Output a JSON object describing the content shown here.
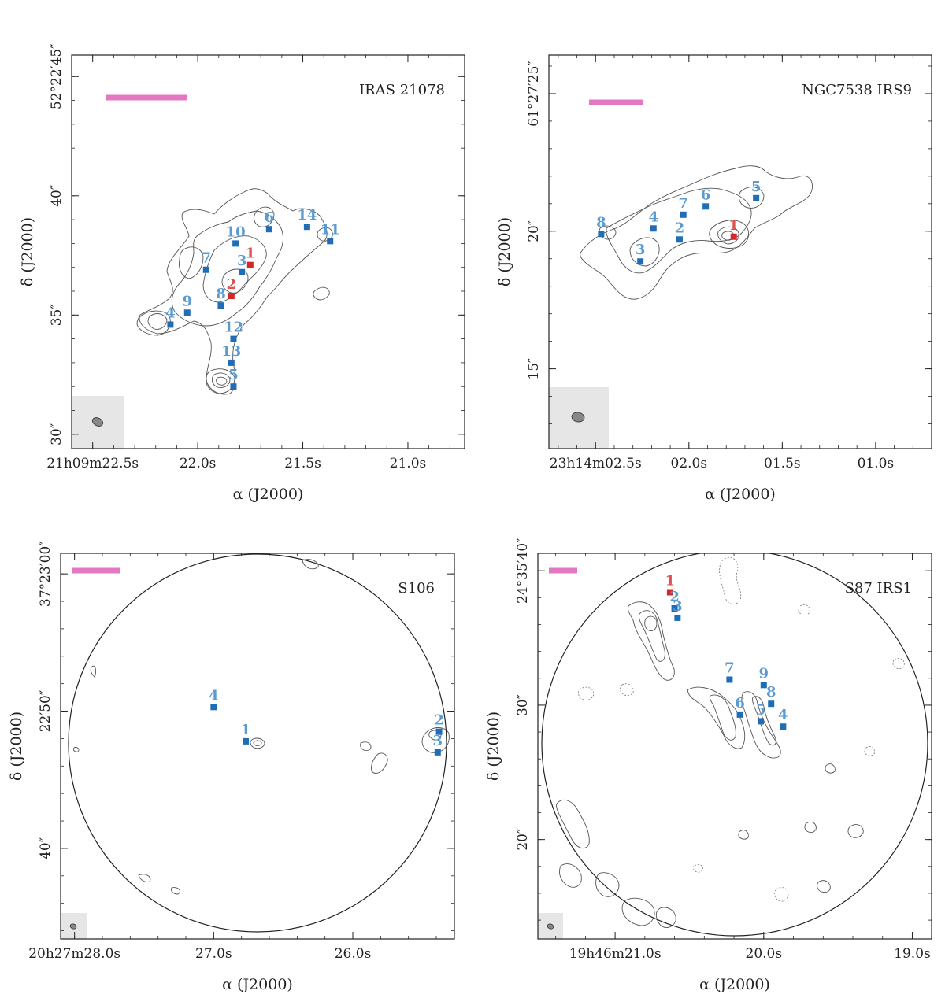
{
  "colors": {
    "blue_marker": "#1f6eb5",
    "blue_label": "#5b9bd0",
    "red_marker": "#d62728",
    "red_label": "#e05050",
    "scale_bar": "#e377c2",
    "contour": "#555555",
    "beam_box": "#e6e6e6",
    "beam": "#888888"
  },
  "chart_data": [
    {
      "type": "scatter",
      "title": "IRAS 21078",
      "xlabel": "α (J2000)",
      "ylabel": "δ (J2000)",
      "xlim": [
        22.6,
        20.73
      ],
      "ylim": [
        29.4,
        45.9
      ],
      "x_ticks": [
        {
          "value": 22.5,
          "label": "21h09m22.5s"
        },
        {
          "value": 22.0,
          "label": "22.0s"
        },
        {
          "value": 21.5,
          "label": "21.5s"
        },
        {
          "value": 21.0,
          "label": "21.0s"
        }
      ],
      "y_ticks": [
        {
          "value": 45,
          "label": "52°22′45″"
        },
        {
          "value": 40,
          "label": "40″"
        },
        {
          "value": 35,
          "label": "35″"
        },
        {
          "value": 30,
          "label": "30″"
        }
      ],
      "has_primary_beam_circle": false,
      "sources": [
        {
          "id": "1",
          "ra": 21.75,
          "dec": 37.1,
          "color": "red"
        },
        {
          "id": "2",
          "ra": 21.84,
          "dec": 35.8,
          "color": "red"
        },
        {
          "id": "3",
          "ra": 21.79,
          "dec": 36.8,
          "color": "blue"
        },
        {
          "id": "4",
          "ra": 22.13,
          "dec": 34.6,
          "color": "blue"
        },
        {
          "id": "5",
          "ra": 21.83,
          "dec": 32.0,
          "color": "blue"
        },
        {
          "id": "6",
          "ra": 21.66,
          "dec": 38.6,
          "color": "blue"
        },
        {
          "id": "7",
          "ra": 21.96,
          "dec": 36.9,
          "color": "blue"
        },
        {
          "id": "8",
          "ra": 21.89,
          "dec": 35.4,
          "color": "blue"
        },
        {
          "id": "9",
          "ra": 22.05,
          "dec": 35.1,
          "color": "blue"
        },
        {
          "id": "10",
          "ra": 21.82,
          "dec": 38.0,
          "color": "blue"
        },
        {
          "id": "11",
          "ra": 21.37,
          "dec": 38.1,
          "color": "blue"
        },
        {
          "id": "12",
          "ra": 21.83,
          "dec": 34.0,
          "color": "blue"
        },
        {
          "id": "13",
          "ra": 21.84,
          "dec": 33.0,
          "color": "blue"
        },
        {
          "id": "14",
          "ra": 21.48,
          "dec": 38.7,
          "color": "blue"
        }
      ]
    },
    {
      "type": "scatter",
      "title": "NGC7538 IRS9",
      "xlabel": "α (J2000)",
      "ylabel": "δ (J2000)",
      "xlim": [
        2.75,
        0.7
      ],
      "ylim": [
        12.1,
        26.4
      ],
      "x_ticks": [
        {
          "value": 2.5,
          "label": "23h14m02.5s"
        },
        {
          "value": 2.0,
          "label": "02.0s"
        },
        {
          "value": 1.5,
          "label": "01.5s"
        },
        {
          "value": 1.0,
          "label": "01.0s"
        }
      ],
      "y_ticks": [
        {
          "value": 25,
          "label": "61°27′25″"
        },
        {
          "value": 20,
          "label": "20″"
        },
        {
          "value": 15,
          "label": "15″"
        }
      ],
      "has_primary_beam_circle": false,
      "sources": [
        {
          "id": "1",
          "ra": 1.76,
          "dec": 19.8,
          "color": "red"
        },
        {
          "id": "2",
          "ra": 2.05,
          "dec": 19.7,
          "color": "blue"
        },
        {
          "id": "3",
          "ra": 2.26,
          "dec": 18.9,
          "color": "blue"
        },
        {
          "id": "4",
          "ra": 2.19,
          "dec": 20.1,
          "color": "blue"
        },
        {
          "id": "5",
          "ra": 1.64,
          "dec": 21.2,
          "color": "blue"
        },
        {
          "id": "6",
          "ra": 1.91,
          "dec": 20.9,
          "color": "blue"
        },
        {
          "id": "7",
          "ra": 2.03,
          "dec": 20.6,
          "color": "blue"
        },
        {
          "id": "8",
          "ra": 2.47,
          "dec": 19.9,
          "color": "blue"
        }
      ]
    },
    {
      "type": "scatter",
      "title": "S106",
      "xlabel": "α (J2000)",
      "ylabel": "δ (J2000)",
      "xlim": [
        28.1,
        25.27
      ],
      "ylim": [
        33.4,
        61.5
      ],
      "x_ticks": [
        {
          "value": 28.0,
          "label": "20h27m28.0s"
        },
        {
          "value": 27.0,
          "label": "27.0s"
        },
        {
          "value": 26.0,
          "label": "26.0s"
        }
      ],
      "y_ticks": [
        {
          "value": 60,
          "label": "37°23′00″"
        },
        {
          "value": 50,
          "label": "22′50″"
        },
        {
          "value": 40,
          "label": "40″"
        }
      ],
      "has_primary_beam_circle": true,
      "sources": [
        {
          "id": "1",
          "ra": 26.77,
          "dec": 47.8,
          "color": "blue"
        },
        {
          "id": "2",
          "ra": 25.38,
          "dec": 48.5,
          "color": "blue"
        },
        {
          "id": "3",
          "ra": 25.39,
          "dec": 47.0,
          "color": "blue"
        },
        {
          "id": "4",
          "ra": 27.0,
          "dec": 50.3,
          "color": "blue"
        }
      ]
    },
    {
      "type": "scatter",
      "title": "S87 IRS1",
      "xlabel": "α (J2000)",
      "ylabel": "δ (J2000)",
      "xlim": [
        21.52,
        18.87
      ],
      "ylim": [
        12.6,
        41.3
      ],
      "x_ticks": [
        {
          "value": 21.0,
          "label": "19h46m21.0s"
        },
        {
          "value": 20.0,
          "label": "20.0s"
        },
        {
          "value": 19.0,
          "label": "19.0s"
        }
      ],
      "y_ticks": [
        {
          "value": 40,
          "label": "24°35′40″"
        },
        {
          "value": 30,
          "label": "30″"
        },
        {
          "value": 20,
          "label": "20″"
        }
      ],
      "has_primary_beam_circle": true,
      "sources": [
        {
          "id": "1",
          "ra": 20.63,
          "dec": 38.4,
          "color": "red"
        },
        {
          "id": "2",
          "ra": 20.6,
          "dec": 37.2,
          "color": "blue"
        },
        {
          "id": "3",
          "ra": 20.58,
          "dec": 36.5,
          "color": "blue"
        },
        {
          "id": "4",
          "ra": 19.87,
          "dec": 28.4,
          "color": "blue"
        },
        {
          "id": "5",
          "ra": 20.02,
          "dec": 28.8,
          "color": "blue"
        },
        {
          "id": "6",
          "ra": 20.16,
          "dec": 29.3,
          "color": "blue"
        },
        {
          "id": "7",
          "ra": 20.23,
          "dec": 31.9,
          "color": "blue"
        },
        {
          "id": "8",
          "ra": 19.95,
          "dec": 30.1,
          "color": "blue"
        },
        {
          "id": "9",
          "ra": 20.0,
          "dec": 31.5,
          "color": "blue"
        }
      ]
    }
  ]
}
